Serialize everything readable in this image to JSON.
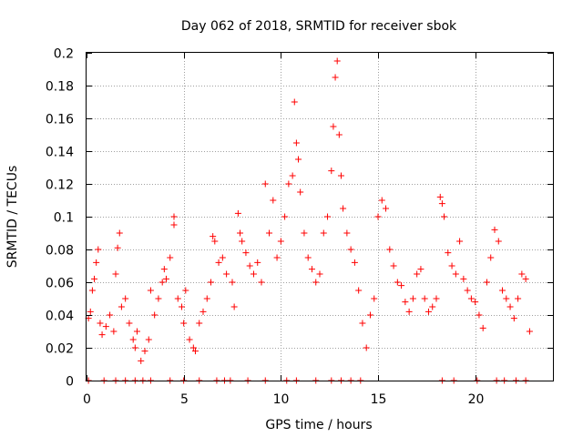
{
  "chart_data": {
    "type": "scatter",
    "title": "Day 062 of 2018, SRMTID for receiver sbok",
    "xlabel": "GPS time / hours",
    "ylabel": "SRMTID / TECUs",
    "xlim": [
      0,
      24
    ],
    "ylim": [
      0,
      0.2
    ],
    "xticks": [
      0,
      5,
      10,
      15,
      20
    ],
    "xtick_labels": [
      "0",
      "5",
      "10",
      "15",
      "20"
    ],
    "yticks": [
      0,
      0.02,
      0.04,
      0.06,
      0.08,
      0.1,
      0.12,
      0.14,
      0.16,
      0.18,
      0.2
    ],
    "ytick_labels": [
      "0",
      "0.02",
      "0.04",
      "0.06",
      "0.08",
      "0.1",
      "0.12",
      "0.14",
      "0.16",
      "0.18",
      "0.2"
    ],
    "grid": true,
    "marker": "+",
    "marker_color": "#ff0000",
    "series": [
      {
        "name": "SRMTID",
        "points": [
          [
            0.1,
            0.038
          ],
          [
            0.2,
            0.042
          ],
          [
            0.3,
            0.055
          ],
          [
            0.4,
            0.062
          ],
          [
            0.5,
            0.072
          ],
          [
            0.6,
            0.08
          ],
          [
            0.7,
            0.035
          ],
          [
            0.8,
            0.028
          ],
          [
            1.0,
            0.033
          ],
          [
            1.2,
            0.04
          ],
          [
            1.4,
            0.03
          ],
          [
            1.5,
            0.065
          ],
          [
            1.6,
            0.081
          ],
          [
            1.7,
            0.09
          ],
          [
            1.8,
            0.045
          ],
          [
            2.0,
            0.05
          ],
          [
            2.2,
            0.035
          ],
          [
            2.4,
            0.025
          ],
          [
            2.5,
            0.02
          ],
          [
            2.6,
            0.03
          ],
          [
            2.8,
            0.012
          ],
          [
            3.0,
            0.018
          ],
          [
            3.2,
            0.025
          ],
          [
            3.3,
            0.055
          ],
          [
            3.5,
            0.04
          ],
          [
            3.7,
            0.05
          ],
          [
            3.9,
            0.06
          ],
          [
            4.0,
            0.068
          ],
          [
            4.1,
            0.062
          ],
          [
            4.3,
            0.075
          ],
          [
            4.5,
            0.1
          ],
          [
            4.5,
            0.095
          ],
          [
            4.7,
            0.05
          ],
          [
            4.9,
            0.045
          ],
          [
            5.0,
            0.035
          ],
          [
            5.1,
            0.055
          ],
          [
            5.3,
            0.025
          ],
          [
            5.5,
            0.02
          ],
          [
            5.6,
            0.018
          ],
          [
            5.8,
            0.035
          ],
          [
            6.0,
            0.042
          ],
          [
            6.2,
            0.05
          ],
          [
            6.4,
            0.06
          ],
          [
            6.5,
            0.088
          ],
          [
            6.6,
            0.085
          ],
          [
            6.8,
            0.072
          ],
          [
            7.0,
            0.075
          ],
          [
            7.2,
            0.065
          ],
          [
            7.5,
            0.06
          ],
          [
            7.6,
            0.045
          ],
          [
            7.8,
            0.102
          ],
          [
            7.9,
            0.09
          ],
          [
            8.0,
            0.085
          ],
          [
            8.2,
            0.078
          ],
          [
            8.4,
            0.07
          ],
          [
            8.6,
            0.065
          ],
          [
            8.8,
            0.072
          ],
          [
            9.0,
            0.06
          ],
          [
            9.2,
            0.12
          ],
          [
            9.4,
            0.09
          ],
          [
            9.6,
            0.11
          ],
          [
            9.8,
            0.075
          ],
          [
            10.0,
            0.085
          ],
          [
            10.2,
            0.1
          ],
          [
            10.4,
            0.12
          ],
          [
            10.6,
            0.125
          ],
          [
            10.7,
            0.17
          ],
          [
            10.8,
            0.145
          ],
          [
            10.9,
            0.135
          ],
          [
            11.0,
            0.115
          ],
          [
            11.2,
            0.09
          ],
          [
            11.4,
            0.075
          ],
          [
            11.6,
            0.068
          ],
          [
            11.8,
            0.06
          ],
          [
            12.0,
            0.065
          ],
          [
            12.2,
            0.09
          ],
          [
            12.4,
            0.1
          ],
          [
            12.6,
            0.128
          ],
          [
            12.7,
            0.155
          ],
          [
            12.8,
            0.185
          ],
          [
            12.9,
            0.195
          ],
          [
            13.0,
            0.15
          ],
          [
            13.1,
            0.125
          ],
          [
            13.2,
            0.105
          ],
          [
            13.4,
            0.09
          ],
          [
            13.6,
            0.08
          ],
          [
            13.8,
            0.072
          ],
          [
            14.0,
            0.055
          ],
          [
            14.2,
            0.035
          ],
          [
            14.4,
            0.02
          ],
          [
            14.6,
            0.04
          ],
          [
            14.8,
            0.05
          ],
          [
            15.0,
            0.1
          ],
          [
            15.2,
            0.11
          ],
          [
            15.4,
            0.105
          ],
          [
            15.6,
            0.08
          ],
          [
            15.8,
            0.07
          ],
          [
            16.0,
            0.06
          ],
          [
            16.2,
            0.058
          ],
          [
            16.4,
            0.048
          ],
          [
            16.6,
            0.042
          ],
          [
            16.8,
            0.05
          ],
          [
            17.0,
            0.065
          ],
          [
            17.2,
            0.068
          ],
          [
            17.4,
            0.05
          ],
          [
            17.6,
            0.042
          ],
          [
            17.8,
            0.045
          ],
          [
            18.0,
            0.05
          ],
          [
            18.2,
            0.112
          ],
          [
            18.3,
            0.108
          ],
          [
            18.4,
            0.1
          ],
          [
            18.6,
            0.078
          ],
          [
            18.8,
            0.07
          ],
          [
            19.0,
            0.065
          ],
          [
            19.2,
            0.085
          ],
          [
            19.4,
            0.062
          ],
          [
            19.6,
            0.055
          ],
          [
            19.8,
            0.05
          ],
          [
            20.0,
            0.048
          ],
          [
            20.2,
            0.04
          ],
          [
            20.4,
            0.032
          ],
          [
            20.6,
            0.06
          ],
          [
            20.8,
            0.075
          ],
          [
            21.0,
            0.092
          ],
          [
            21.2,
            0.085
          ],
          [
            21.4,
            0.055
          ],
          [
            21.6,
            0.05
          ],
          [
            21.8,
            0.045
          ],
          [
            22.0,
            0.038
          ],
          [
            22.2,
            0.05
          ],
          [
            22.4,
            0.065
          ],
          [
            22.6,
            0.062
          ],
          [
            22.8,
            0.03
          ]
        ]
      }
    ],
    "baseline_hours": [
      0.1,
      0.9,
      1.5,
      2.0,
      2.5,
      2.9,
      3.3,
      4.3,
      5.0,
      5.8,
      6.7,
      7.1,
      7.4,
      8.3,
      9.2,
      10.3,
      10.8,
      11.8,
      12.6,
      13.1,
      13.6,
      14.1,
      18.3,
      18.9,
      20.1,
      21.1,
      21.5,
      22.1,
      22.6
    ]
  }
}
